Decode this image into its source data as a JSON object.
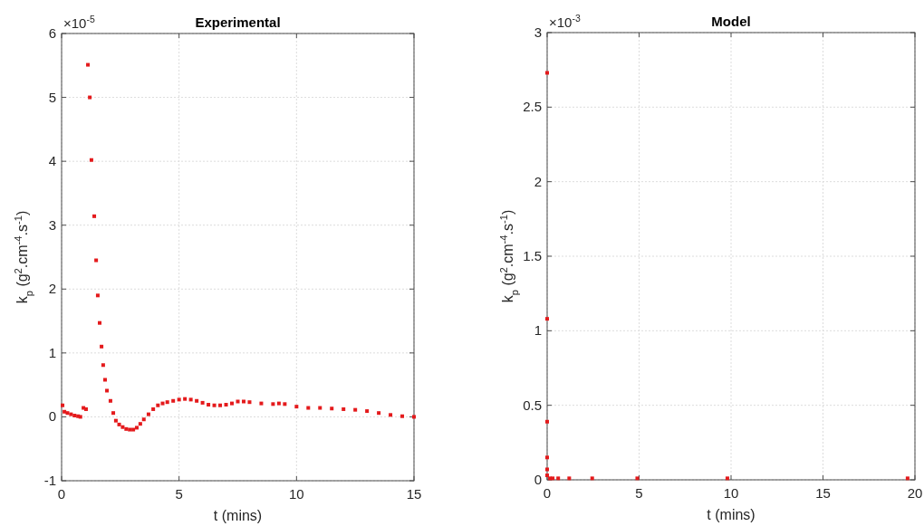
{
  "chart_data": [
    {
      "type": "scatter",
      "title": "Experimental",
      "xlabel": "t (mins)",
      "ylabel": "k$_{p}$ (g$^{2}$.cm$^{-4}$.s$^{-1}$)",
      "annotations": [
        "×10$^{-5}$"
      ],
      "xlim": [
        0,
        15
      ],
      "ylim": [
        -1,
        6
      ],
      "xticks": [
        0,
        5,
        10,
        15
      ],
      "yticks": [
        -1,
        0,
        1,
        2,
        3,
        4,
        5,
        6
      ],
      "grid": true,
      "marker": "square",
      "series": [
        {
          "color": "#e41a1c",
          "x": [
            0.04,
            0.12,
            0.25,
            0.4,
            0.55,
            0.7,
            0.8,
            0.93,
            1.04,
            1.12,
            1.2,
            1.27,
            1.39,
            1.47,
            1.54,
            1.62,
            1.7,
            1.77,
            1.85,
            1.93,
            2.08,
            2.2,
            2.31,
            2.45,
            2.6,
            2.75,
            2.9,
            3.05,
            3.2,
            3.35,
            3.5,
            3.7,
            3.9,
            4.1,
            4.3,
            4.5,
            4.75,
            5.0,
            5.25,
            5.5,
            5.75,
            6.0,
            6.25,
            6.5,
            6.75,
            7.0,
            7.25,
            7.5,
            7.75,
            8.0,
            8.5,
            9.0,
            9.25,
            9.5,
            10.0,
            10.5,
            11.0,
            11.5,
            12.0,
            12.5,
            13.0,
            13.5,
            14.0,
            14.5,
            15.0
          ],
          "values": [
            0.18,
            0.08,
            0.06,
            0.04,
            0.02,
            0.01,
            0.0,
            0.14,
            0.12,
            5.51,
            5.0,
            4.02,
            3.14,
            2.45,
            1.9,
            1.47,
            1.1,
            0.81,
            0.58,
            0.41,
            0.25,
            0.06,
            -0.06,
            -0.12,
            -0.16,
            -0.19,
            -0.2,
            -0.2,
            -0.17,
            -0.11,
            -0.04,
            0.04,
            0.12,
            0.18,
            0.21,
            0.23,
            0.25,
            0.27,
            0.28,
            0.27,
            0.25,
            0.22,
            0.19,
            0.18,
            0.18,
            0.19,
            0.21,
            0.24,
            0.24,
            0.23,
            0.21,
            0.2,
            0.21,
            0.2,
            0.16,
            0.14,
            0.14,
            0.13,
            0.12,
            0.11,
            0.09,
            0.06,
            0.03,
            0.01,
            0.0
          ]
        }
      ]
    },
    {
      "type": "scatter",
      "title": "Model",
      "xlabel": "t (mins)",
      "ylabel": "k$_{p}$ (g$^{2}$.cm$^{-4}$.s$^{-1}$)",
      "annotations": [
        "×10$^{-3}$"
      ],
      "xlim": [
        0,
        20
      ],
      "ylim": [
        0,
        3
      ],
      "xticks": [
        0,
        5,
        10,
        15,
        20
      ],
      "yticks": [
        0,
        0.5,
        1,
        1.5,
        2,
        2.5,
        3
      ],
      "grid": true,
      "marker": "square",
      "series": [
        {
          "color": "#e41a1c",
          "x": [
            0,
            0,
            0,
            0,
            0,
            0,
            0.15,
            0.3,
            0.6,
            1.2,
            2.45,
            4.9,
            9.8,
            19.6
          ],
          "values": [
            2.73,
            1.08,
            0.39,
            0.15,
            0.07,
            0.03,
            0.01,
            0.01,
            0.01,
            0.01,
            0.01,
            0.01,
            0.01,
            0.01
          ]
        }
      ]
    }
  ]
}
